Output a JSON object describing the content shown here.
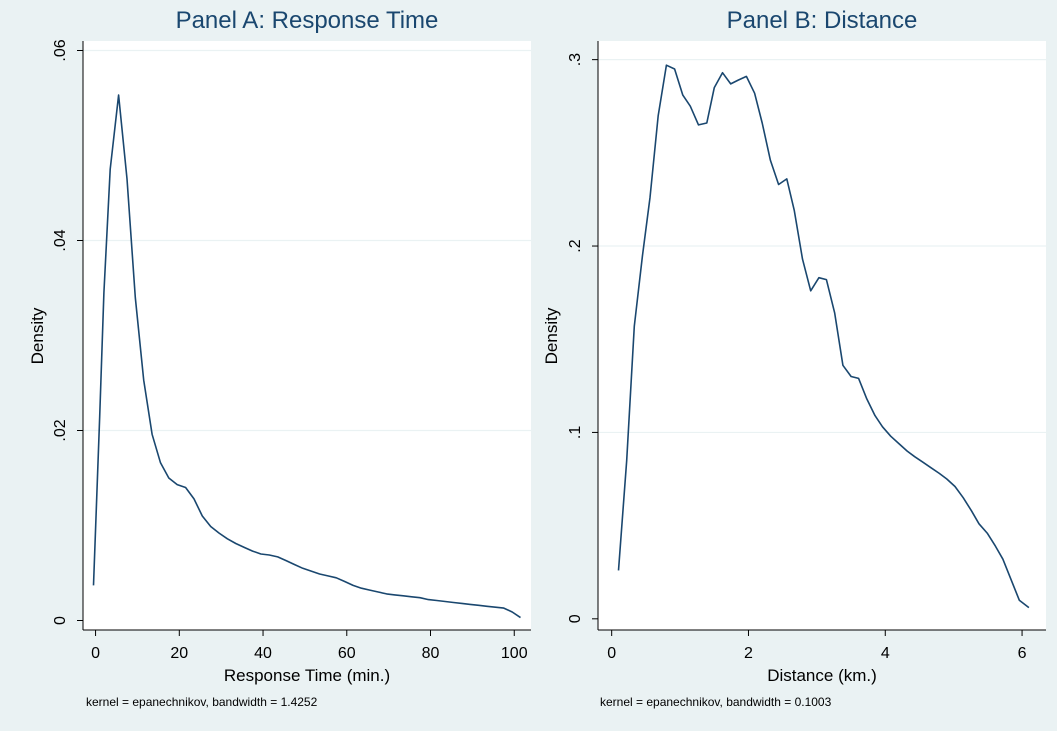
{
  "colors": {
    "background": "#eaf2f3",
    "plot_area": "#ffffff",
    "line": "#1a476f",
    "title": "#1a476f",
    "grid": "#eaf2f3"
  },
  "chart_data": [
    {
      "type": "line",
      "title": "Panel A: Response Time",
      "xlabel": "Response Time (min.)",
      "ylabel": "Density",
      "note": "kernel = epanechnikov, bandwidth = 1.4252",
      "xlim": [
        -3,
        104
      ],
      "ylim": [
        -0.001,
        0.061
      ],
      "xticks": [
        0,
        20,
        40,
        60,
        80,
        100
      ],
      "xtick_labels": [
        "0",
        "20",
        "40",
        "60",
        "80",
        "100"
      ],
      "yticks": [
        0,
        0.02,
        0.04,
        0.06
      ],
      "ytick_labels": [
        "0",
        ".02",
        ".04",
        ".06"
      ],
      "grid": true,
      "x": [
        -0.5,
        1,
        2,
        3.5,
        5.5,
        7.5,
        9.5,
        11.5,
        13.5,
        15.5,
        17.5,
        19.5,
        21.5,
        23.5,
        25.5,
        27.5,
        29.5,
        31.5,
        33.5,
        35.5,
        37.5,
        39.5,
        41.5,
        43.5,
        45.5,
        47.5,
        49.5,
        51.5,
        53.5,
        55.5,
        57.5,
        59.5,
        61.5,
        63.5,
        65.5,
        67.5,
        69.5,
        71.5,
        73.5,
        75.5,
        77.5,
        79.5,
        81.5,
        83.5,
        85.5,
        87.5,
        89.5,
        91.5,
        93.5,
        95.5,
        97.5,
        99.5,
        101.5
      ],
      "y": [
        0.0037,
        0.0215,
        0.0345,
        0.0475,
        0.0553,
        0.0465,
        0.034,
        0.0253,
        0.0196,
        0.0166,
        0.015,
        0.0143,
        0.014,
        0.0128,
        0.011,
        0.0099,
        0.0092,
        0.0086,
        0.0081,
        0.0077,
        0.0073,
        0.007,
        0.0069,
        0.0067,
        0.0063,
        0.0059,
        0.0055,
        0.0052,
        0.0049,
        0.0047,
        0.0045,
        0.0041,
        0.0037,
        0.0034,
        0.0032,
        0.003,
        0.0028,
        0.0027,
        0.0026,
        0.0025,
        0.0024,
        0.0022,
        0.0021,
        0.002,
        0.0019,
        0.0018,
        0.0017,
        0.0016,
        0.0015,
        0.0014,
        0.0013,
        0.0009,
        0.0003
      ]
    },
    {
      "type": "line",
      "title": "Panel B: Distance",
      "xlabel": "Distance (km.)",
      "ylabel": "Density",
      "note": "kernel = epanechnikov, bandwidth = 0.1003",
      "xlim": [
        -0.2,
        6.35
      ],
      "ylim": [
        -0.006,
        0.31
      ],
      "xticks": [
        0,
        2,
        4,
        6
      ],
      "xtick_labels": [
        "0",
        "2",
        "4",
        "6"
      ],
      "yticks": [
        0,
        0.1,
        0.2,
        0.3
      ],
      "ytick_labels": [
        "0",
        ".1",
        ".2",
        ".3"
      ],
      "grid": true,
      "x": [
        0.1,
        0.22,
        0.33,
        0.45,
        0.56,
        0.68,
        0.8,
        0.92,
        1.04,
        1.15,
        1.27,
        1.39,
        1.5,
        1.62,
        1.74,
        1.85,
        1.97,
        2.09,
        2.2,
        2.32,
        2.44,
        2.56,
        2.67,
        2.79,
        2.91,
        3.03,
        3.14,
        3.26,
        3.38,
        3.5,
        3.61,
        3.73,
        3.85,
        3.96,
        4.08,
        4.2,
        4.32,
        4.43,
        4.55,
        4.67,
        4.79,
        4.9,
        5.02,
        5.14,
        5.26,
        5.37,
        5.49,
        5.61,
        5.72,
        5.84,
        5.96,
        6.1
      ],
      "y": [
        0.026,
        0.085,
        0.157,
        0.195,
        0.226,
        0.27,
        0.297,
        0.295,
        0.281,
        0.275,
        0.265,
        0.266,
        0.285,
        0.293,
        0.287,
        0.289,
        0.291,
        0.282,
        0.266,
        0.246,
        0.233,
        0.236,
        0.219,
        0.193,
        0.176,
        0.183,
        0.182,
        0.164,
        0.136,
        0.13,
        0.129,
        0.118,
        0.109,
        0.103,
        0.098,
        0.094,
        0.09,
        0.087,
        0.084,
        0.081,
        0.078,
        0.075,
        0.071,
        0.065,
        0.058,
        0.051,
        0.046,
        0.039,
        0.032,
        0.021,
        0.01,
        0.006
      ]
    }
  ]
}
